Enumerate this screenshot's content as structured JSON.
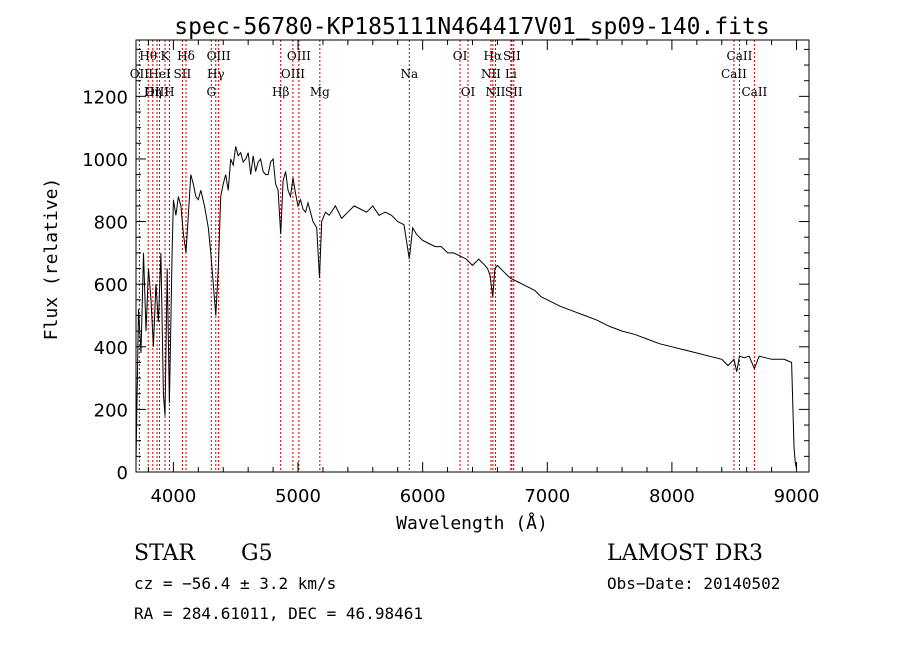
{
  "chart_data": {
    "type": "line",
    "title": "spec-56780-KP185111N464417V01_sp09-140.fits",
    "xlabel": "Wavelength (Å)",
    "ylabel": "Flux (relative)",
    "xlim": [
      3700,
      9100
    ],
    "ylim": [
      0,
      1380
    ],
    "x_ticks": [
      4000,
      5000,
      6000,
      7000,
      8000,
      9000
    ],
    "y_ticks": [
      0,
      200,
      400,
      600,
      800,
      1000,
      1200
    ],
    "series": [
      {
        "name": "spectrum",
        "x": [
          3700,
          3720,
          3740,
          3760,
          3780,
          3800,
          3820,
          3840,
          3860,
          3880,
          3900,
          3920,
          3933,
          3950,
          3968,
          3990,
          4000,
          4020,
          4040,
          4060,
          4080,
          4101,
          4120,
          4140,
          4160,
          4180,
          4200,
          4220,
          4250,
          4280,
          4300,
          4320,
          4340,
          4360,
          4380,
          4400,
          4420,
          4440,
          4460,
          4480,
          4500,
          4520,
          4540,
          4560,
          4580,
          4600,
          4620,
          4640,
          4660,
          4680,
          4700,
          4720,
          4740,
          4760,
          4780,
          4800,
          4820,
          4840,
          4861,
          4880,
          4900,
          4920,
          4940,
          4960,
          4980,
          5000,
          5020,
          5040,
          5060,
          5080,
          5100,
          5120,
          5150,
          5172,
          5190,
          5220,
          5250,
          5300,
          5350,
          5400,
          5450,
          5500,
          5550,
          5600,
          5650,
          5700,
          5750,
          5800,
          5850,
          5893,
          5920,
          5950,
          6000,
          6050,
          6100,
          6150,
          6200,
          6250,
          6300,
          6350,
          6400,
          6450,
          6500,
          6520,
          6540,
          6563,
          6580,
          6600,
          6650,
          6700,
          6750,
          6800,
          6850,
          6900,
          6950,
          7000,
          7100,
          7200,
          7300,
          7400,
          7500,
          7600,
          7700,
          7800,
          7900,
          8000,
          8100,
          8200,
          8300,
          8400,
          8450,
          8498,
          8520,
          8542,
          8580,
          8620,
          8662,
          8700,
          8750,
          8800,
          8850,
          8900,
          8960,
          8980,
          8990,
          9000
        ],
        "values": [
          30,
          520,
          380,
          700,
          450,
          650,
          550,
          400,
          600,
          480,
          700,
          250,
          180,
          650,
          220,
          700,
          870,
          820,
          880,
          850,
          760,
          700,
          820,
          950,
          920,
          880,
          870,
          900,
          850,
          780,
          700,
          600,
          500,
          650,
          880,
          920,
          950,
          900,
          1000,
          980,
          1040,
          1010,
          1020,
          990,
          1000,
          1020,
          950,
          1010,
          960,
          990,
          1000,
          960,
          950,
          950,
          990,
          1000,
          920,
          900,
          760,
          930,
          960,
          900,
          880,
          940,
          890,
          850,
          870,
          840,
          830,
          860,
          830,
          800,
          780,
          620,
          800,
          830,
          820,
          850,
          810,
          830,
          850,
          840,
          830,
          850,
          820,
          830,
          820,
          800,
          790,
          680,
          780,
          760,
          740,
          730,
          720,
          720,
          700,
          700,
          690,
          680,
          660,
          680,
          660,
          650,
          630,
          560,
          650,
          660,
          640,
          620,
          610,
          600,
          590,
          580,
          560,
          550,
          530,
          515,
          500,
          485,
          465,
          450,
          440,
          425,
          410,
          400,
          390,
          380,
          370,
          360,
          340,
          360,
          320,
          370,
          365,
          370,
          330,
          370,
          365,
          360,
          360,
          360,
          350,
          80,
          30,
          10
        ]
      }
    ],
    "lines": [
      {
        "label": "Hθ",
        "x": 3798,
        "row": 1
      },
      {
        "label": "OII",
        "x": 3727,
        "row": 2
      },
      {
        "label": "OIII",
        "x": 3869,
        "row": 3
      },
      {
        "label": "Hη",
        "x": 3835,
        "row": 3
      },
      {
        "label": "K",
        "x": 3933,
        "row": 1
      },
      {
        "label": "HeI",
        "x": 3889,
        "row": 2
      },
      {
        "label": "H",
        "x": 3968,
        "row": 3
      },
      {
        "label": "Hδ",
        "x": 4101,
        "row": 1
      },
      {
        "label": "SII",
        "x": 4072,
        "row": 2
      },
      {
        "label": "OIII",
        "x": 4363,
        "row": 1
      },
      {
        "label": "Hγ",
        "x": 4340,
        "row": 2
      },
      {
        "label": "G",
        "x": 4304,
        "row": 3
      },
      {
        "label": "Hβ",
        "x": 4861,
        "row": 3
      },
      {
        "label": "OIII",
        "x": 5007,
        "row": 1
      },
      {
        "label": "OIII",
        "x": 4959,
        "row": 2
      },
      {
        "label": "Mg",
        "x": 5175,
        "row": 3
      },
      {
        "label": "Na",
        "x": 5893,
        "row": 2
      },
      {
        "label": "OI",
        "x": 6300,
        "row": 1
      },
      {
        "label": "OI",
        "x": 6364,
        "row": 3
      },
      {
        "label": "Hα",
        "x": 6563,
        "row": 1
      },
      {
        "label": "SII",
        "x": 6716,
        "row": 1
      },
      {
        "label": "NII",
        "x": 6548,
        "row": 2
      },
      {
        "label": "Li",
        "x": 6708,
        "row": 2
      },
      {
        "label": "NII",
        "x": 6584,
        "row": 3
      },
      {
        "label": "SII",
        "x": 6731,
        "row": 3
      },
      {
        "label": "CaII",
        "x": 8542,
        "row": 1
      },
      {
        "label": "CaII",
        "x": 8498,
        "row": 2
      },
      {
        "label": "CaII",
        "x": 8662,
        "row": 3
      }
    ]
  },
  "info": {
    "class_label": "STAR",
    "subclass_label": "G5",
    "survey": "LAMOST DR3",
    "cz": "cz = −56.4 ± 3.2 km/s",
    "obs_date": "Obs−Date: 20140502",
    "coords": "RA = 284.61011, DEC =  46.98461"
  },
  "colors": {
    "axis": "#000000",
    "spectrum": "#000000",
    "line_marker": "#c00000",
    "background": "#ffffff"
  }
}
